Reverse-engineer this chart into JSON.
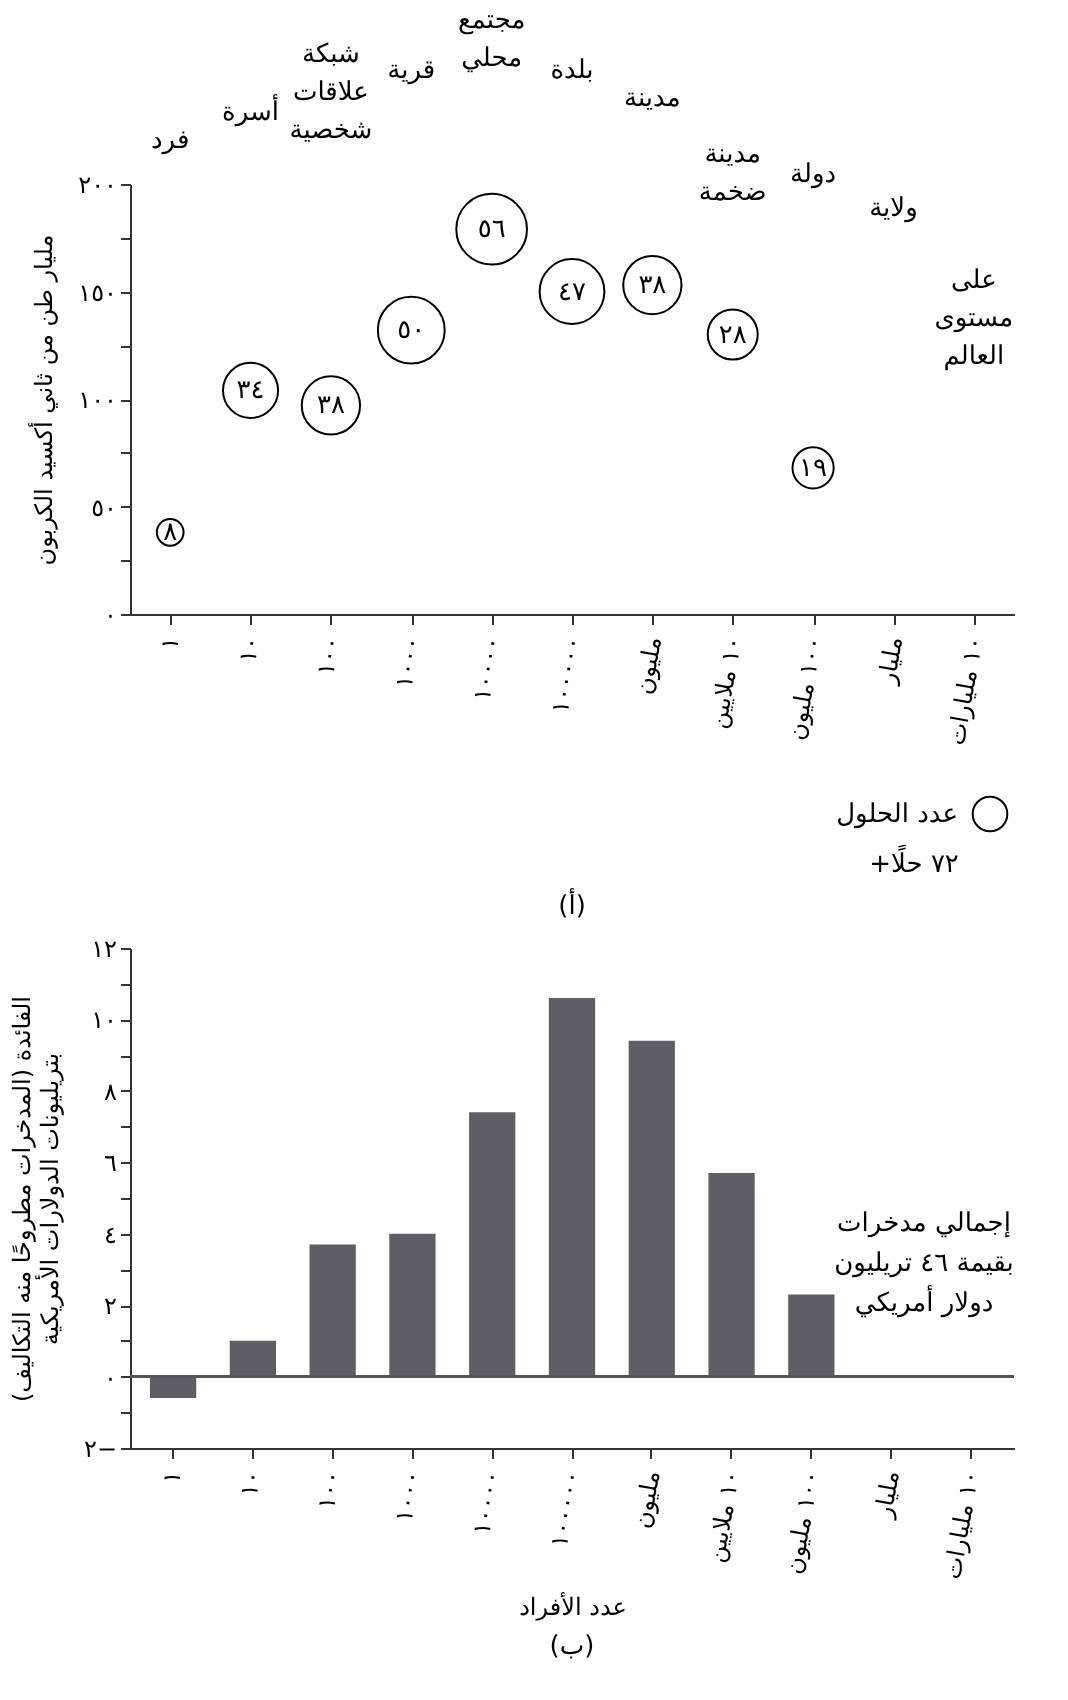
{
  "chart_data": [
    {
      "type": "bubble",
      "title": "(أ)",
      "ylabel": "مليار طن من ثاني أكسيد الكربون",
      "legend_title": "عدد الحلول",
      "categories": [
        "١",
        "١٠",
        "١٠٠",
        "١٠٠٠",
        "١٠٠٠٠",
        "١٠٠٠٠٠",
        "مليون",
        "١٠ ملايين",
        "١٠٠ مليون",
        "مليار",
        "١٠ مليارات"
      ],
      "series": [
        {
          "color": "#000000",
          "values": [
            38,
            104,
            97,
            132,
            179,
            150,
            153,
            130,
            68,
            null,
            null
          ],
          "sizes": [
            8,
            34,
            38,
            50,
            56,
            47,
            38,
            28,
            19,
            null,
            null
          ],
          "value_labels": [
            "٨",
            "٣٤",
            "٣٨",
            "٥٠",
            "٥٦",
            "٤٧",
            "٣٨",
            "٢٨",
            "١٩",
            null,
            null
          ]
        }
      ],
      "ylim": [
        0,
        200
      ],
      "yticks": [
        {
          "value": 0,
          "label": "٠"
        },
        {
          "value": 25,
          "label": null
        },
        {
          "value": 50,
          "label": "٥٠"
        },
        {
          "value": 75,
          "label": null
        },
        {
          "value": 100,
          "label": "١٠٠"
        },
        {
          "value": 125,
          "label": null
        },
        {
          "value": 150,
          "label": "١٥٠"
        },
        {
          "value": 175,
          "label": null
        },
        {
          "value": 200,
          "label": "٢٠٠"
        }
      ],
      "marker": "circle",
      "grid": false,
      "annotations": [
        "فرد",
        "أسرة",
        "شبكة\nعلاقات\nشخصية",
        "قرية",
        "مجتمع\nمحلي",
        "بلدة",
        "مدينة",
        "مدينة\nضخمة",
        "دولة",
        "ولاية",
        "على\nمستوى\nالعالم",
        "+٧٢ حلًا"
      ]
    },
    {
      "type": "bar",
      "title": "(ب)",
      "xlabel": "عدد الأفراد",
      "ylabel": "الفائدة (المدخرات مطروحًا منه التكاليف)\nبتريليونات الدولارات الأمريكية",
      "categories": [
        "١",
        "١٠",
        "١٠٠",
        "١٠٠٠",
        "١٠٠٠٠",
        "١٠٠٠٠٠",
        "مليون",
        "١٠ ملايين",
        "١٠٠ مليون",
        "مليار",
        "١٠ مليارات"
      ],
      "series": [
        {
          "color": "#5f5e66",
          "values": [
            -0.6,
            1.0,
            3.7,
            4.0,
            7.4,
            10.6,
            9.4,
            5.7,
            2.3,
            null,
            null
          ]
        }
      ],
      "ylim": [
        -2,
        12
      ],
      "yticks": [
        {
          "value": -2,
          "label": "٢−"
        },
        {
          "value": -1,
          "label": null
        },
        {
          "value": 0,
          "label": "٠"
        },
        {
          "value": 1,
          "label": null
        },
        {
          "value": 2,
          "label": "٢"
        },
        {
          "value": 3,
          "label": null
        },
        {
          "value": 4,
          "label": "٤"
        },
        {
          "value": 5,
          "label": null
        },
        {
          "value": 6,
          "label": "٦"
        },
        {
          "value": 7,
          "label": null
        },
        {
          "value": 8,
          "label": "٨"
        },
        {
          "value": 9,
          "label": null
        },
        {
          "value": 10,
          "label": "١٠"
        },
        {
          "value": 11,
          "label": null
        },
        {
          "value": 12,
          "label": "١٢"
        }
      ],
      "grid": false,
      "ref_lines": [
        {
          "axis": "y",
          "value": 0,
          "color": "#555555"
        }
      ],
      "annotations": [
        "إجمالي مدخرات\nبقيمة ٤٦ تريليون\nدولار أمريكي"
      ]
    }
  ]
}
